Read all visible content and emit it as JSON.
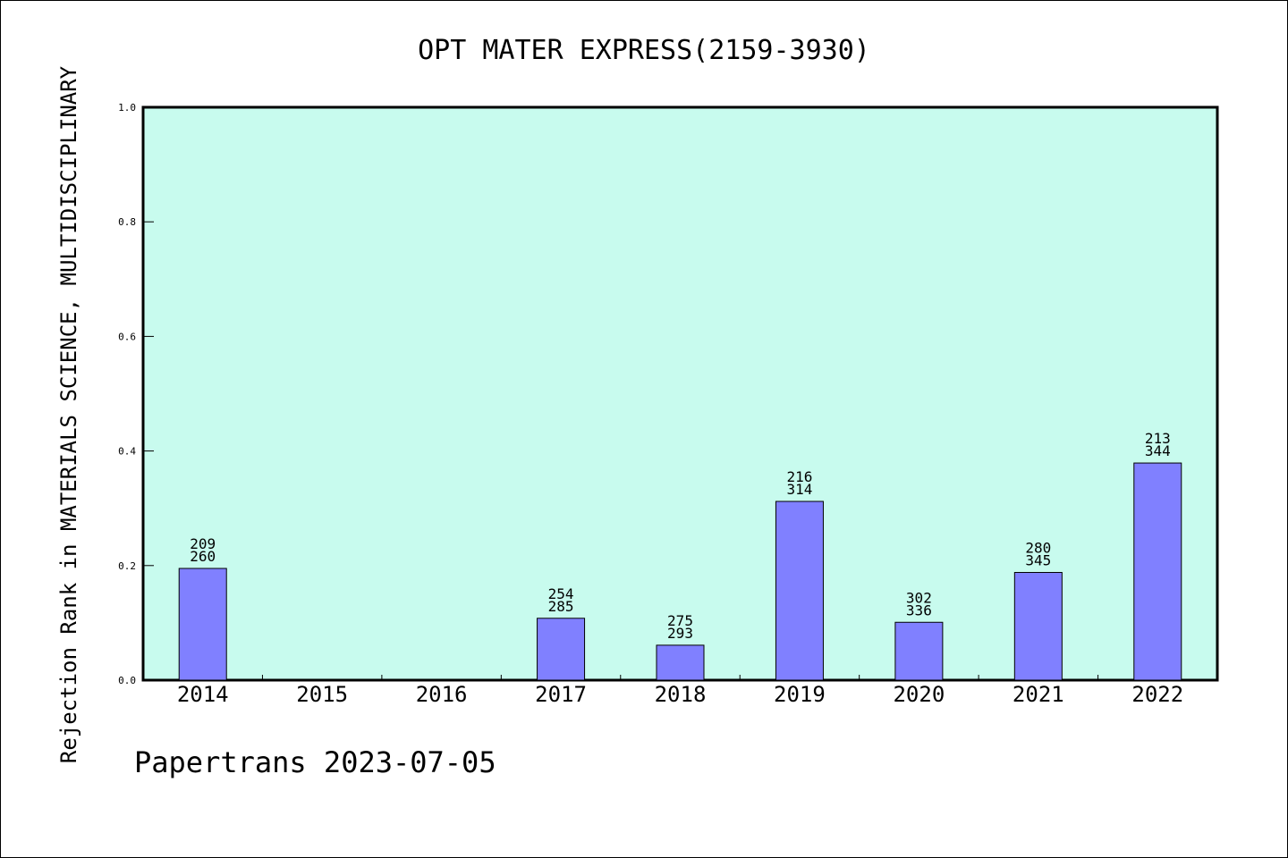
{
  "chart_data": {
    "type": "bar",
    "title": "OPT MATER EXPRESS(2159-3930)",
    "xlabel": "",
    "ylabel": "Rejection Rank in MATERIALS SCIENCE, MULTIDISCIPLINARY",
    "categories": [
      "2014",
      "2015",
      "2016",
      "2017",
      "2018",
      "2019",
      "2020",
      "2021",
      "2022"
    ],
    "values": [
      0.195,
      null,
      null,
      0.108,
      0.061,
      0.312,
      0.101,
      0.188,
      0.379
    ],
    "labels": [
      [
        "209",
        "260"
      ],
      null,
      null,
      [
        "254",
        "285"
      ],
      [
        "275",
        "293"
      ],
      [
        "216",
        "314"
      ],
      [
        "302",
        "336"
      ],
      [
        "280",
        "345"
      ],
      [
        "213",
        "344"
      ]
    ],
    "ylim": [
      0,
      1.0
    ],
    "yticks": [
      "0.0",
      "0.2",
      "0.4",
      "0.6",
      "0.8",
      "1.0"
    ],
    "grid": false,
    "colors": {
      "plot_background": "#c8fbee",
      "bar": "#8080ff",
      "bar_edge": "#000000",
      "axis": "#000000"
    }
  },
  "footer": {
    "source": "Papertrans 2023-07-05"
  }
}
